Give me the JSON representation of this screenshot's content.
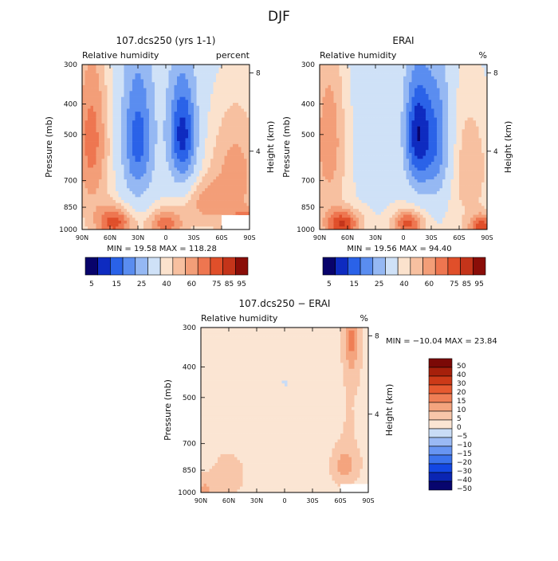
{
  "figure_title": "DJF",
  "chart_data": [
    {
      "type": "heatmap",
      "title": "107.dcs250 (yrs 1-1)",
      "subtitle_left": "Relative humidity",
      "subtitle_right": "percent",
      "ylabel": "Pressure (mb)",
      "ylabel_right": "Height (km)",
      "x_ticks": [
        "90N",
        "60N",
        "30N",
        "0",
        "30S",
        "60S",
        "90S"
      ],
      "y_ticks": [
        "300",
        "400",
        "500",
        "700",
        "850",
        "1000"
      ],
      "y_ticks_right": [
        "8",
        "4"
      ],
      "x_range": [
        90,
        -90
      ],
      "y_range_mb": [
        1000,
        300
      ],
      "min_label": "MIN =",
      "min_value": "19.58",
      "max_label": "MAX =",
      "max_value": "118.28",
      "colorbar_labels": [
        "5",
        "15",
        "25",
        "40",
        "60",
        "75",
        "85",
        "95"
      ],
      "field": {
        "mean": 58,
        "height_dep": 0.12,
        "blobs": [
          {
            "x": -18,
            "p": 500,
            "sx": 10,
            "sp": 130,
            "a": -42
          },
          {
            "x": 30,
            "p": 520,
            "sx": 11,
            "sp": 170,
            "a": -32
          },
          {
            "x": -75,
            "p": 650,
            "sx": 22,
            "sp": 250,
            "a": 14
          },
          {
            "x": 80,
            "p": 500,
            "sx": 14,
            "sp": 250,
            "a": 20
          },
          {
            "x": -85,
            "p": 980,
            "sx": 10,
            "sp": 60,
            "a": 32
          },
          {
            "x": 0,
            "p": 960,
            "sx": 14,
            "sp": 80,
            "a": 18
          },
          {
            "x": 55,
            "p": 950,
            "sx": 14,
            "sp": 80,
            "a": 22
          },
          {
            "x": -40,
            "p": 820,
            "sx": 16,
            "sp": 100,
            "a": 10
          }
        ]
      },
      "missing_box": {
        "x0": 60,
        "x1": 90,
        "p0": 900,
        "p1": 1000
      }
    },
    {
      "type": "heatmap",
      "title": "ERAI",
      "subtitle_left": "Relative humidity",
      "subtitle_right": "%",
      "ylabel": "Pressure (mb)",
      "ylabel_right": "Height (km)",
      "x_ticks": [
        "90N",
        "60N",
        "30N",
        "0",
        "30S",
        "60S",
        "90S"
      ],
      "y_ticks": [
        "300",
        "400",
        "500",
        "700",
        "850",
        "1000"
      ],
      "y_ticks_right": [
        "8",
        "4"
      ],
      "x_range": [
        90,
        -90
      ],
      "y_range_mb": [
        1000,
        300
      ],
      "min_label": "MIN =",
      "min_value": "19.56",
      "max_label": "MAX =",
      "max_value": "94.40",
      "colorbar_labels": [
        "5",
        "15",
        "25",
        "40",
        "60",
        "75",
        "85",
        "95"
      ],
      "field": {
        "mean": 58,
        "height_dep": 0.1,
        "blobs": [
          {
            "x": -15,
            "p": 500,
            "sx": 9,
            "sp": 140,
            "a": -42
          },
          {
            "x": -35,
            "p": 520,
            "sx": 11,
            "sp": 170,
            "a": -28
          },
          {
            "x": -70,
            "p": 600,
            "sx": 20,
            "sp": 250,
            "a": 10
          },
          {
            "x": 80,
            "p": 500,
            "sx": 14,
            "sp": 260,
            "a": 16
          },
          {
            "x": -5,
            "p": 960,
            "sx": 12,
            "sp": 70,
            "a": 22
          },
          {
            "x": 65,
            "p": 960,
            "sx": 14,
            "sp": 70,
            "a": 24
          },
          {
            "x": -85,
            "p": 980,
            "sx": 10,
            "sp": 60,
            "a": 22
          }
        ]
      },
      "missing_box": null
    },
    {
      "type": "heatmap",
      "title": "107.dcs250 − ERAI",
      "subtitle_left": "Relative humidity",
      "subtitle_right": "%",
      "ylabel": "Pressure (mb)",
      "ylabel_right": "Height (km)",
      "x_ticks": [
        "90N",
        "60N",
        "30N",
        "0",
        "30S",
        "60S",
        "90S"
      ],
      "y_ticks": [
        "300",
        "400",
        "500",
        "700",
        "850",
        "1000"
      ],
      "y_ticks_right": [
        "8",
        "4"
      ],
      "x_range": [
        90,
        -90
      ],
      "y_range_mb": [
        1000,
        300
      ],
      "min_label": "MIN =",
      "min_value": "−10.04",
      "max_label": "MAX =",
      "max_value": "23.84",
      "colorbar_labels": [
        "50",
        "40",
        "30",
        "20",
        "15",
        "10",
        "5",
        "0",
        "−5",
        "−10",
        "−15",
        "−20",
        "−30",
        "−40",
        "−50"
      ],
      "field": {
        "mean": 1.5,
        "height_dep": 0,
        "blobs": [
          {
            "x": 0,
            "p": 450,
            "sx": 25,
            "sp": 200,
            "a": -4
          },
          {
            "x": -50,
            "p": 500,
            "sx": 15,
            "sp": 200,
            "a": -3
          },
          {
            "x": -60,
            "p": 550,
            "sx": 14,
            "sp": 220,
            "a": 3
          },
          {
            "x": -72,
            "p": 330,
            "sx": 5,
            "sp": 60,
            "a": 12
          },
          {
            "x": -65,
            "p": 820,
            "sx": 8,
            "sp": 60,
            "a": 9
          },
          {
            "x": 60,
            "p": 880,
            "sx": 10,
            "sp": 80,
            "a": 4
          },
          {
            "x": 85,
            "p": 980,
            "sx": 8,
            "sp": 60,
            "a": 7
          }
        ]
      },
      "missing_box": {
        "x0": 60,
        "x1": 90,
        "p0": 940,
        "p1": 1000
      }
    }
  ],
  "palettes": {
    "rh": [
      "#08036b",
      "#0e2bc0",
      "#2a62e8",
      "#5a8df0",
      "#95b8f3",
      "#cfe1f7",
      "#fbe2cd",
      "#f7c0a0",
      "#f39e78",
      "#ee7650",
      "#e04f2a",
      "#c4341a",
      "#8a0d08"
    ],
    "diff": [
      "#07056e",
      "#0a25b3",
      "#1347e3",
      "#3b73ed",
      "#6795f2",
      "#9ab9f4",
      "#c9dcf6",
      "#fbe5d3",
      "#f8c6a9",
      "#f4a47e",
      "#ef7e55",
      "#e65a30",
      "#cc3a18",
      "#a6200b",
      "#7b0906"
    ]
  }
}
